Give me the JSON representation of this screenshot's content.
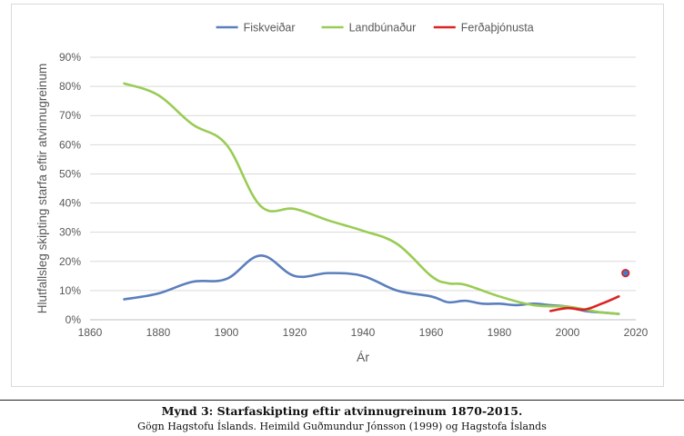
{
  "chart_data": {
    "type": "line",
    "xlabel": "Ár",
    "ylabel": "Hlutfallsleg skipting starfa eftir  atvinnugreinum",
    "xlim": [
      1860,
      2020
    ],
    "ylim": [
      0,
      0.9
    ],
    "x_ticks": [
      1860,
      1880,
      1900,
      1920,
      1940,
      1960,
      1980,
      2000,
      2020
    ],
    "y_ticks": [
      0,
      0.1,
      0.2,
      0.3,
      0.4,
      0.5,
      0.6,
      0.7,
      0.8,
      0.9
    ],
    "y_tick_labels": [
      "0%",
      "10%",
      "20%",
      "30%",
      "40%",
      "50%",
      "60%",
      "70%",
      "80%",
      "90%"
    ],
    "grid": "horizontal",
    "legend_position": "top",
    "series": [
      {
        "name": "Fiskveiðar",
        "color": "#5b7fbd",
        "points": [
          [
            1870,
            0.07
          ],
          [
            1880,
            0.09
          ],
          [
            1890,
            0.13
          ],
          [
            1900,
            0.14
          ],
          [
            1910,
            0.22
          ],
          [
            1920,
            0.15
          ],
          [
            1930,
            0.16
          ],
          [
            1940,
            0.15
          ],
          [
            1950,
            0.1
          ],
          [
            1960,
            0.08
          ],
          [
            1965,
            0.06
          ],
          [
            1970,
            0.065
          ],
          [
            1975,
            0.055
          ],
          [
            1980,
            0.055
          ],
          [
            1985,
            0.05
          ],
          [
            1990,
            0.055
          ],
          [
            1995,
            0.05
          ],
          [
            2000,
            0.045
          ],
          [
            2005,
            0.03
          ],
          [
            2010,
            0.025
          ],
          [
            2015,
            0.02
          ]
        ]
      },
      {
        "name": "Landbúnaður",
        "color": "#99cc55",
        "points": [
          [
            1870,
            0.81
          ],
          [
            1880,
            0.77
          ],
          [
            1890,
            0.67
          ],
          [
            1900,
            0.6
          ],
          [
            1910,
            0.39
          ],
          [
            1920,
            0.38
          ],
          [
            1930,
            0.34
          ],
          [
            1940,
            0.305
          ],
          [
            1950,
            0.26
          ],
          [
            1960,
            0.15
          ],
          [
            1965,
            0.125
          ],
          [
            1970,
            0.12
          ],
          [
            1980,
            0.08
          ],
          [
            1990,
            0.05
          ],
          [
            2000,
            0.045
          ],
          [
            2005,
            0.035
          ],
          [
            2010,
            0.025
          ],
          [
            2015,
            0.02
          ]
        ]
      },
      {
        "name": "Ferðaþjónusta",
        "color": "#dd2222",
        "points": [
          [
            1995,
            0.03
          ],
          [
            2000,
            0.04
          ],
          [
            2005,
            0.035
          ],
          [
            2010,
            0.055
          ],
          [
            2015,
            0.08
          ]
        ]
      }
    ],
    "extra_marker": {
      "x": 2017,
      "y": 0.16,
      "fill": "#3a7fd0",
      "stroke": "#dd2222"
    }
  },
  "caption": {
    "title": "Mynd 3: Starfaskipting eftir atvinnugreinum 1870-2015.",
    "source": "Gögn Hagstofu Íslands. Heimild Guðmundur Jónsson (1999) og Hagstofa Íslands"
  }
}
